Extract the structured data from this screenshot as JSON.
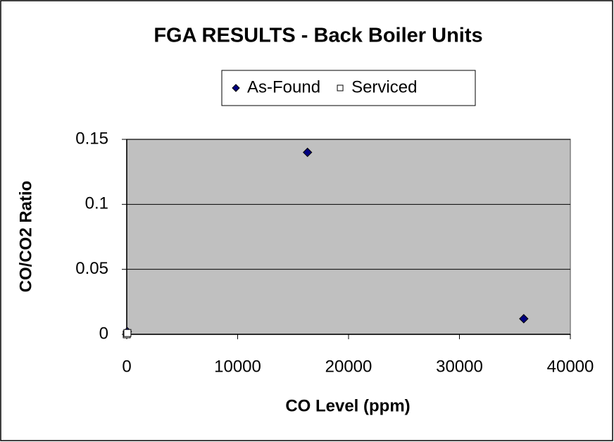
{
  "chart_data": {
    "type": "scatter",
    "title": "FGA RESULTS - Back Boiler Units",
    "x_label": "CO Level (ppm)",
    "y_label": "CO/CO2 Ratio",
    "series": [
      {
        "name": "As-Found",
        "color": "#000080",
        "marker": "diamond",
        "x": [
          16300,
          35800,
          50
        ],
        "values": [
          0.14,
          0.012,
          0.002
        ]
      },
      {
        "name": "Serviced",
        "color": "#ffffff",
        "marker": "square",
        "x": [
          0,
          60
        ],
        "values": [
          0,
          0.001
        ]
      }
    ],
    "xlim": [
      0,
      40000
    ],
    "xticks": [
      0,
      10000,
      20000,
      30000,
      40000
    ],
    "ylim": [
      0,
      0.15
    ],
    "yticks": [
      0,
      0.05,
      0.1,
      0.15
    ],
    "grid": true,
    "legend": "top",
    "plot_background": "#c0c0c0"
  }
}
